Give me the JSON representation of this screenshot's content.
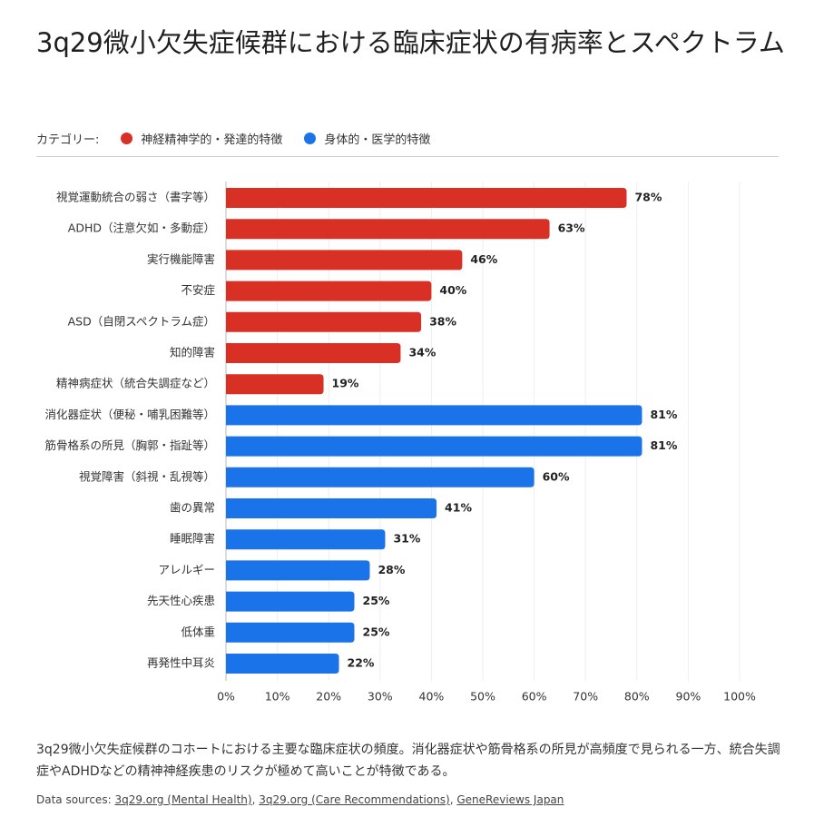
{
  "chart_data": {
    "type": "hbar",
    "title": "3q29微小欠失症候群における臨床症状の有病率とスペクトラム",
    "legend_title": "カテゴリー:",
    "categories": [
      "視覚運動統合の弱さ（書字等）",
      "ADHD（注意欠如・多動症）",
      "実行機能障害",
      "不安症",
      "ASD（自閉スペクトラム症）",
      "知的障害",
      "精神病症状（統合失調症など）",
      "消化器症状（便秘・哺乳困難等）",
      "筋骨格系の所見（胸郭・指趾等）",
      "視覚障害（斜視・乱視等）",
      "歯の異常",
      "睡眠障害",
      "アレルギー",
      "先天性心疾患",
      "低体重",
      "再発性中耳炎"
    ],
    "series": [
      {
        "name": "神経精神学的・発達的特徴",
        "color": "#d93025",
        "values": [
          78,
          63,
          46,
          40,
          38,
          34,
          19,
          null,
          null,
          null,
          null,
          null,
          null,
          null,
          null,
          null
        ],
        "value_labels": [
          "78%",
          "63%",
          "46%",
          "40%",
          "38%",
          "34%",
          "19%",
          null,
          null,
          null,
          null,
          null,
          null,
          null,
          null,
          null
        ]
      },
      {
        "name": "身体的・医学的特徴",
        "color": "#1a73e8",
        "values": [
          null,
          null,
          null,
          null,
          null,
          null,
          null,
          81,
          81,
          60,
          41,
          31,
          28,
          25,
          25,
          22
        ],
        "value_labels": [
          null,
          null,
          null,
          null,
          null,
          null,
          null,
          "81%",
          "81%",
          "60%",
          "41%",
          "31%",
          "28%",
          "25%",
          "25%",
          "22%"
        ]
      }
    ],
    "xlim": [
      0,
      100
    ],
    "xticks": [
      {
        "value": 0,
        "label": "0%"
      },
      {
        "value": 10,
        "label": "10%"
      },
      {
        "value": 20,
        "label": "20%"
      },
      {
        "value": 30,
        "label": "30%"
      },
      {
        "value": 40,
        "label": "40%"
      },
      {
        "value": 50,
        "label": "50%"
      },
      {
        "value": 60,
        "label": "60%"
      },
      {
        "value": 70,
        "label": "70%"
      },
      {
        "value": 80,
        "label": "80%"
      },
      {
        "value": 90,
        "label": "90%"
      },
      {
        "value": 100,
        "label": "100%"
      }
    ],
    "grid": true,
    "caption": "3q29微小欠失症候群のコホートにおける主要な臨床症状の頻度。消化器症状や筋骨格系の所見が高頻度で見られる一方、統合失調症やADHDなどの精神神経疾患のリスクが極めて高いことが特徴である。",
    "source_prefix": "Data sources: ",
    "source_separator": ", ",
    "sources": [
      "3q29.org (Mental Health)",
      "3q29.org (Care Recommendations)",
      "GeneReviews Japan"
    ]
  }
}
